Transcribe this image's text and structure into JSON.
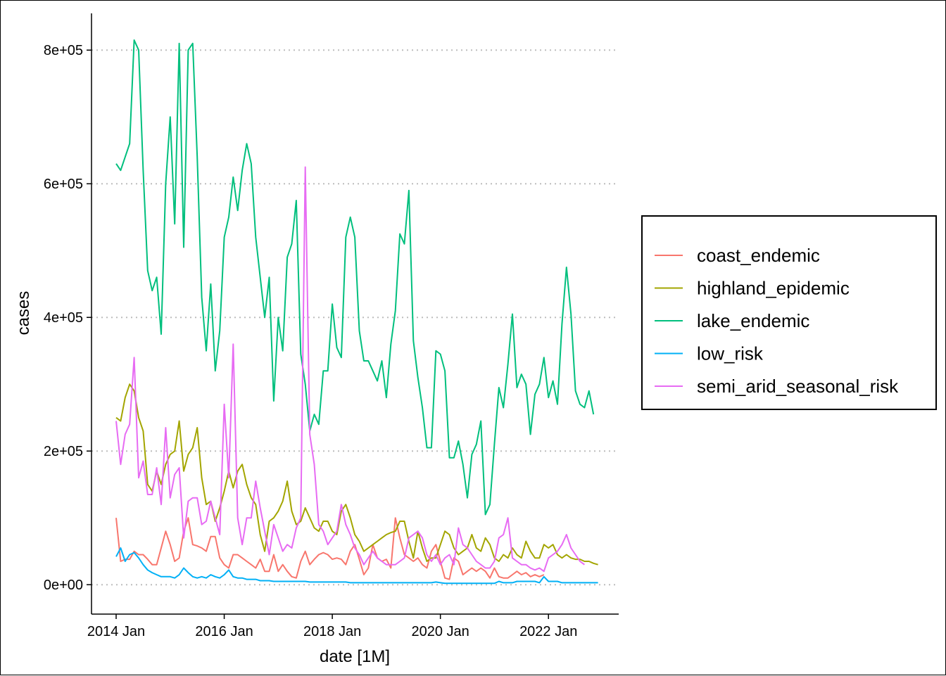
{
  "chart_data": {
    "type": "line",
    "title": "",
    "xlabel": "date [1M]",
    "ylabel": "cases",
    "x_start": "2014 Jan",
    "n_months": 108,
    "ylim": [
      -44000,
      855000
    ],
    "yticks": [
      0,
      200000,
      400000,
      600000,
      800000
    ],
    "ytick_labels": [
      "0e+00",
      "2e+05",
      "4e+05",
      "6e+05",
      "8e+05"
    ],
    "xticks": [
      0,
      24,
      48,
      72,
      96
    ],
    "xtick_labels": [
      "2014 Jan",
      "2016 Jan",
      "2018 Jan",
      "2020 Jan",
      "2022 Jan"
    ],
    "grid": "major-y dotted",
    "legend_position": "right",
    "series": [
      {
        "name": "coast_endemic",
        "color": "#F8766D",
        "values": [
          100000,
          35000,
          38000,
          38000,
          50000,
          45000,
          45000,
          38000,
          30000,
          30000,
          55000,
          80000,
          60000,
          35000,
          40000,
          80000,
          100000,
          60000,
          58000,
          55000,
          50000,
          72000,
          72000,
          40000,
          30000,
          25000,
          45000,
          45000,
          40000,
          35000,
          30000,
          25000,
          38000,
          20000,
          20000,
          45000,
          20000,
          30000,
          20000,
          12000,
          10000,
          35000,
          50000,
          30000,
          38000,
          45000,
          48000,
          45000,
          38000,
          40000,
          38000,
          30000,
          50000,
          60000,
          38000,
          15000,
          25000,
          60000,
          40000,
          35000,
          38000,
          25000,
          100000,
          70000,
          45000,
          40000,
          35000,
          40000,
          30000,
          25000,
          50000,
          60000,
          35000,
          10000,
          8000,
          40000,
          35000,
          15000,
          20000,
          25000,
          20000,
          25000,
          20000,
          10000,
          25000,
          12000,
          10000,
          10000,
          15000,
          20000,
          15000,
          18000,
          12000,
          15000,
          12000,
          15000
        ]
      },
      {
        "name": "highland_epidemic",
        "color": "#A3A500",
        "values": [
          250000,
          245000,
          280000,
          300000,
          290000,
          250000,
          230000,
          150000,
          140000,
          170000,
          150000,
          180000,
          195000,
          200000,
          245000,
          170000,
          195000,
          205000,
          235000,
          160000,
          120000,
          125000,
          95000,
          115000,
          140000,
          170000,
          145000,
          170000,
          180000,
          150000,
          130000,
          120000,
          75000,
          50000,
          95000,
          100000,
          110000,
          125000,
          155000,
          110000,
          90000,
          95000,
          115000,
          100000,
          85000,
          80000,
          95000,
          95000,
          80000,
          75000,
          110000,
          120000,
          100000,
          75000,
          65000,
          50000,
          55000,
          60000,
          65000,
          70000,
          75000,
          78000,
          80000,
          95000,
          95000,
          65000,
          40000,
          80000,
          55000,
          35000,
          40000,
          40000,
          60000,
          80000,
          75000,
          55000,
          45000,
          50000,
          55000,
          75000,
          55000,
          50000,
          70000,
          60000,
          40000,
          35000,
          45000,
          40000,
          55000,
          45000,
          40000,
          65000,
          50000,
          40000,
          40000,
          60000,
          55000,
          60000,
          45000,
          40000,
          45000,
          40000,
          38000,
          38000,
          35000,
          35000,
          32000,
          30000
        ]
      },
      {
        "name": "lake_endemic",
        "color": "#00BF7D",
        "values": [
          630000,
          620000,
          640000,
          660000,
          815000,
          800000,
          620000,
          470000,
          440000,
          460000,
          375000,
          600000,
          700000,
          540000,
          810000,
          505000,
          800000,
          810000,
          640000,
          430000,
          350000,
          450000,
          320000,
          380000,
          520000,
          550000,
          610000,
          560000,
          620000,
          660000,
          630000,
          520000,
          460000,
          400000,
          460000,
          275000,
          400000,
          350000,
          490000,
          510000,
          575000,
          345000,
          300000,
          230000,
          255000,
          240000,
          320000,
          320000,
          420000,
          355000,
          340000,
          520000,
          550000,
          520000,
          380000,
          335000,
          335000,
          320000,
          305000,
          335000,
          280000,
          360000,
          410000,
          525000,
          510000,
          590000,
          365000,
          310000,
          265000,
          205000,
          205000,
          350000,
          345000,
          320000,
          190000,
          190000,
          215000,
          180000,
          130000,
          195000,
          210000,
          245000,
          105000,
          120000,
          210000,
          295000,
          265000,
          330000,
          405000,
          295000,
          315000,
          300000,
          225000,
          285000,
          300000,
          340000,
          280000,
          305000,
          270000,
          390000,
          475000,
          405000,
          290000,
          270000,
          265000,
          290000,
          255000
        ]
      },
      {
        "name": "low_risk",
        "color": "#00B0F6",
        "values": [
          42000,
          55000,
          35000,
          45000,
          48000,
          40000,
          30000,
          22000,
          18000,
          15000,
          12000,
          12000,
          12000,
          10000,
          15000,
          25000,
          18000,
          12000,
          10000,
          12000,
          10000,
          15000,
          12000,
          10000,
          15000,
          22000,
          12000,
          10000,
          10000,
          8000,
          8000,
          8000,
          6000,
          6000,
          6000,
          5000,
          5000,
          5000,
          5000,
          5000,
          5000,
          5000,
          5000,
          4000,
          4000,
          4000,
          4000,
          4000,
          4000,
          4000,
          4000,
          4000,
          3000,
          3000,
          3000,
          3000,
          3000,
          3000,
          3000,
          3000,
          3000,
          3000,
          3000,
          3000,
          3000,
          3000,
          3000,
          3000,
          3000,
          3000,
          3000,
          4000,
          3000,
          2000,
          2000,
          2000,
          2000,
          2000,
          2000,
          2000,
          2000,
          2000,
          2000,
          2000,
          2000,
          5000,
          3000,
          3000,
          3000,
          5000,
          5000,
          5000,
          5000,
          5000,
          3000,
          12000,
          5000,
          5000,
          5000,
          3000,
          3000,
          3000,
          3000,
          3000,
          3000,
          3000,
          3000,
          3000
        ]
      },
      {
        "name": "semi_arid_seasonal_risk",
        "color": "#E76BF3",
        "values": [
          245000,
          180000,
          225000,
          240000,
          340000,
          160000,
          185000,
          135000,
          135000,
          175000,
          120000,
          235000,
          130000,
          165000,
          175000,
          70000,
          125000,
          130000,
          130000,
          90000,
          95000,
          125000,
          100000,
          75000,
          270000,
          160000,
          360000,
          100000,
          60000,
          100000,
          100000,
          155000,
          115000,
          80000,
          45000,
          90000,
          70000,
          50000,
          60000,
          55000,
          85000,
          100000,
          625000,
          225000,
          180000,
          90000,
          80000,
          60000,
          70000,
          80000,
          120000,
          90000,
          75000,
          55000,
          45000,
          30000,
          40000,
          50000,
          40000,
          35000,
          30000,
          30000,
          30000,
          35000,
          40000,
          70000,
          75000,
          80000,
          70000,
          45000,
          35000,
          45000,
          30000,
          40000,
          45000,
          30000,
          85000,
          60000,
          55000,
          45000,
          35000,
          30000,
          25000,
          25000,
          35000,
          70000,
          75000,
          100000,
          40000,
          35000,
          30000,
          30000,
          25000,
          22000,
          25000,
          20000,
          40000,
          45000,
          50000,
          60000,
          75000,
          55000,
          45000,
          35000,
          30000
        ]
      }
    ]
  }
}
